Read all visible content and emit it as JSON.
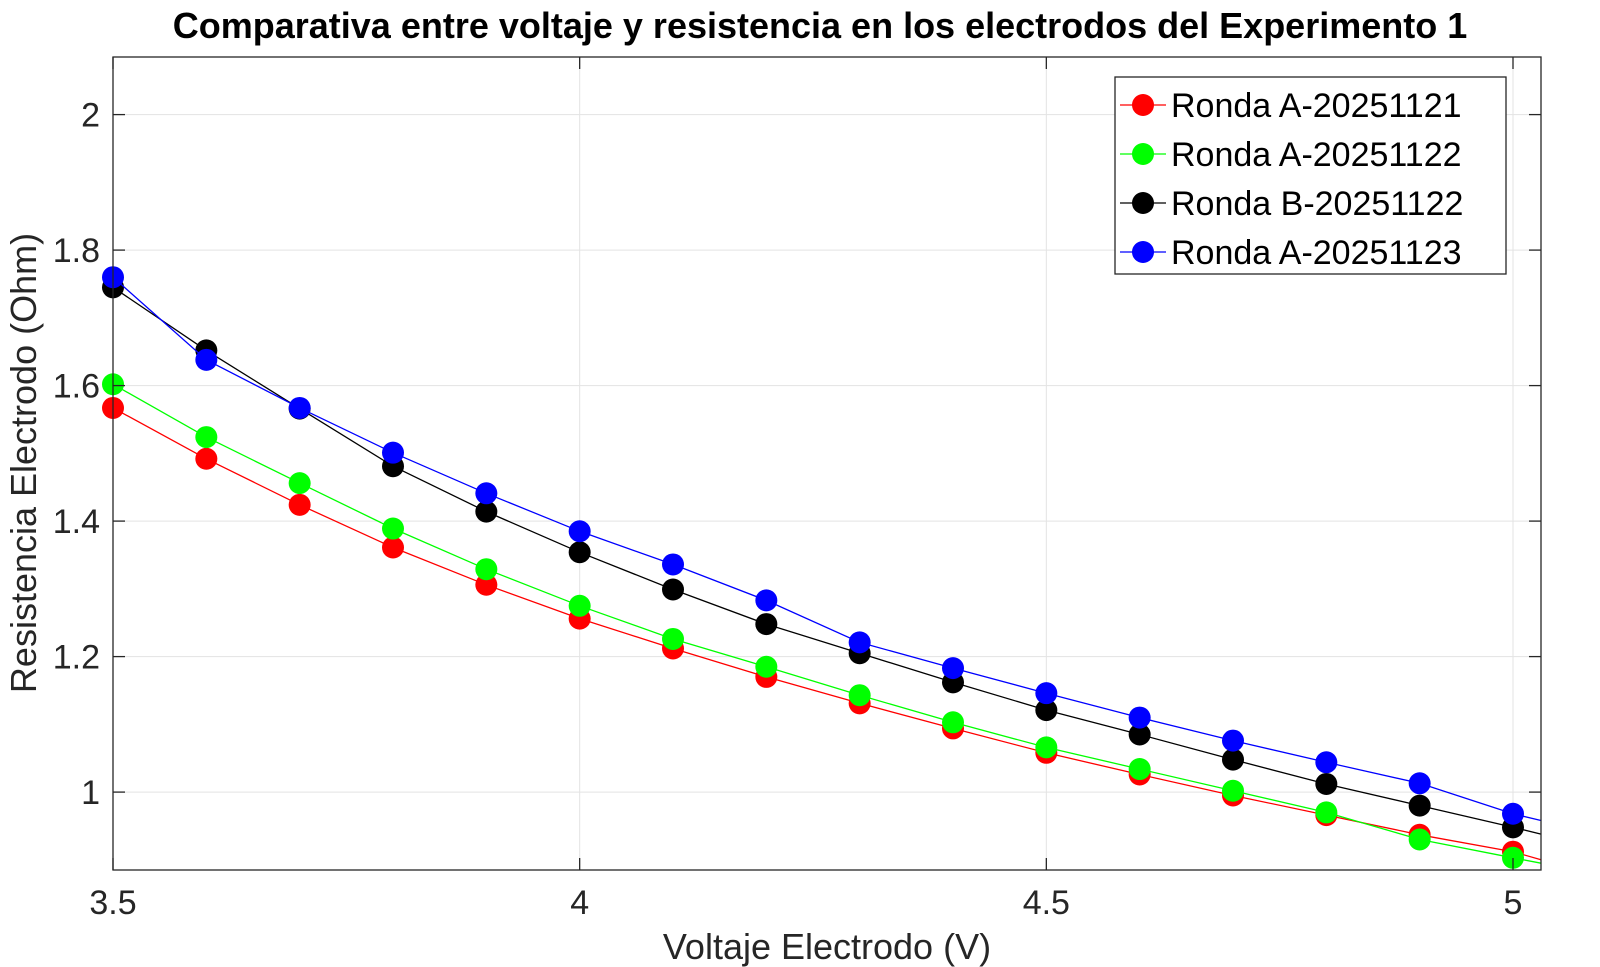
{
  "chart_data": {
    "type": "line",
    "title": "Comparativa entre voltaje y resistencia en los electrodos del Experimento 1",
    "xlabel": "Voltaje Electrodo (V)",
    "ylabel": "Resistencia Electrodo (Ohm)",
    "xlim": [
      3.5,
      5.03
    ],
    "ylim": [
      0.885,
      2.085
    ],
    "xticks": [
      3.5,
      4,
      4.5,
      5
    ],
    "xtick_labels": [
      "3.5",
      "4",
      "4.5",
      "5"
    ],
    "yticks": [
      1,
      1.2,
      1.4,
      1.6,
      1.8,
      2
    ],
    "ytick_labels": [
      "1",
      "1.2",
      "1.4",
      "1.6",
      "1.8",
      "2"
    ],
    "grid": true,
    "legend_position": "top-right",
    "series": [
      {
        "name": "Ronda A-20251121",
        "color": "#ff0000",
        "x": [
          3.5,
          3.6,
          3.7,
          3.8,
          3.9,
          4.0,
          4.1,
          4.2,
          4.3,
          4.4,
          4.5,
          4.6,
          4.7,
          4.8,
          4.9,
          5.0
        ],
        "y": [
          1.567,
          1.492,
          1.424,
          1.361,
          1.306,
          1.256,
          1.212,
          1.17,
          1.131,
          1.094,
          1.058,
          1.026,
          0.995,
          0.966,
          0.937,
          0.912
        ],
        "tail": [
          5.03,
          0.9
        ]
      },
      {
        "name": "Ronda A-20251122",
        "color": "#00ff00",
        "x": [
          3.5,
          3.6,
          3.7,
          3.8,
          3.9,
          4.0,
          4.1,
          4.2,
          4.3,
          4.4,
          4.5,
          4.6,
          4.7,
          4.8,
          4.9,
          5.0
        ],
        "y": [
          1.602,
          1.524,
          1.456,
          1.389,
          1.329,
          1.275,
          1.226,
          1.185,
          1.143,
          1.103,
          1.066,
          1.034,
          1.002,
          0.97,
          0.93,
          0.903
        ],
        "tail": [
          5.03,
          0.895
        ]
      },
      {
        "name": "Ronda B-20251122",
        "color": "#000000",
        "x": [
          3.5,
          3.6,
          3.7,
          3.8,
          3.9,
          4.0,
          4.1,
          4.2,
          4.3,
          4.4,
          4.5,
          4.6,
          4.7,
          4.8,
          4.9,
          5.0
        ],
        "y": [
          1.745,
          1.652,
          1.566,
          1.481,
          1.414,
          1.354,
          1.299,
          1.248,
          1.205,
          1.162,
          1.121,
          1.085,
          1.048,
          1.012,
          0.98,
          0.948
        ],
        "tail": [
          5.03,
          0.938
        ]
      },
      {
        "name": "Ronda A-20251123",
        "color": "#0000ff",
        "x": [
          3.5,
          3.6,
          3.7,
          3.8,
          3.9,
          4.0,
          4.1,
          4.2,
          4.3,
          4.4,
          4.5,
          4.6,
          4.7,
          4.8,
          4.9,
          5.0
        ],
        "y": [
          1.76,
          1.638,
          1.567,
          1.501,
          1.441,
          1.385,
          1.336,
          1.283,
          1.221,
          1.183,
          1.146,
          1.11,
          1.076,
          1.044,
          1.013,
          0.968
        ],
        "tail": [
          5.03,
          0.958
        ]
      }
    ]
  }
}
